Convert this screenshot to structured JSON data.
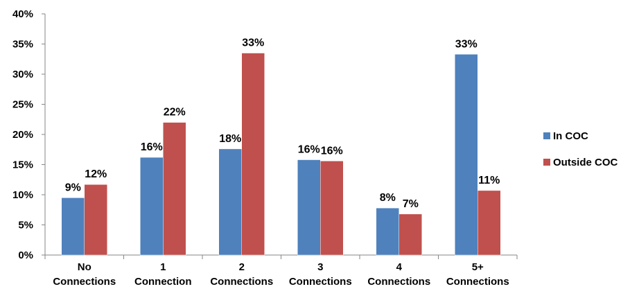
{
  "chart_data": {
    "type": "bar",
    "categories": [
      [
        "No",
        "Connections"
      ],
      [
        "1",
        "Connection"
      ],
      [
        "2",
        "Connections"
      ],
      [
        "3",
        "Connections"
      ],
      [
        "4",
        "Connections"
      ],
      [
        "5+",
        "Connections"
      ]
    ],
    "series": [
      {
        "name": "In COC",
        "color": "#4F81BD",
        "values": [
          9.5,
          16.2,
          17.6,
          15.8,
          7.8,
          33.3
        ],
        "labels": [
          "9%",
          "16%",
          "18%",
          "16%",
          "8%",
          "33%"
        ]
      },
      {
        "name": "Outside COC",
        "color": "#C0504D",
        "values": [
          11.7,
          22.0,
          33.5,
          15.6,
          6.8,
          10.7
        ],
        "labels": [
          "12%",
          "22%",
          "33%",
          "16%",
          "7%",
          "11%"
        ]
      }
    ],
    "ylim": [
      0,
      40
    ],
    "yticks": [
      "0%",
      "5%",
      "10%",
      "15%",
      "20%",
      "25%",
      "30%",
      "35%",
      "40%"
    ],
    "legend": "right",
    "grid": false
  }
}
